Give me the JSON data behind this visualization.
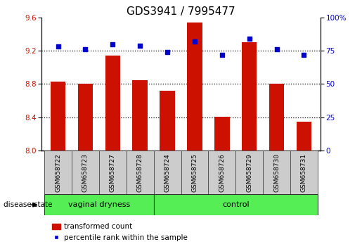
{
  "title": "GDS3941 / 7995477",
  "samples": [
    "GSM658722",
    "GSM658723",
    "GSM658727",
    "GSM658728",
    "GSM658724",
    "GSM658725",
    "GSM658726",
    "GSM658729",
    "GSM658730",
    "GSM658731"
  ],
  "bar_values": [
    8.83,
    8.8,
    9.14,
    8.85,
    8.72,
    9.54,
    8.41,
    9.3,
    8.8,
    8.35
  ],
  "dot_values": [
    78,
    76,
    80,
    79,
    74,
    82,
    72,
    84,
    76,
    72
  ],
  "ymin": 8.0,
  "ymax": 9.6,
  "y2min": 0,
  "y2max": 100,
  "yticks": [
    8.0,
    8.4,
    8.8,
    9.2,
    9.6
  ],
  "y2ticks": [
    0,
    25,
    50,
    75,
    100
  ],
  "bar_color": "#cc1100",
  "dot_color": "#0000cc",
  "group1_label": "vaginal dryness",
  "group2_label": "control",
  "group1_count": 4,
  "group2_count": 6,
  "disease_state_label": "disease state",
  "legend_bar_label": "transformed count",
  "legend_dot_label": "percentile rank within the sample",
  "group_bg_color": "#55ee55",
  "sample_bg_color": "#cccccc",
  "title_fontsize": 11,
  "tick_fontsize": 7.5,
  "label_fontsize": 8,
  "gridline_values": [
    8.4,
    8.8,
    9.2
  ],
  "bar_width": 0.55
}
